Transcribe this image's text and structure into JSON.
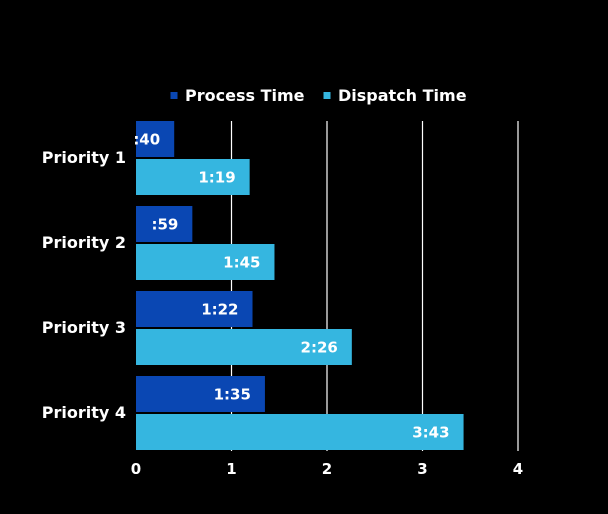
{
  "chart_data": {
    "type": "bar",
    "orientation": "horizontal",
    "categories": [
      "Priority 1",
      "Priority 2",
      "Priority 3",
      "Priority 4"
    ],
    "series": [
      {
        "name": "Process Time",
        "color": "#0a47b3",
        "values": [
          0.4,
          0.59,
          1.22,
          1.35
        ],
        "labels": [
          ":40",
          ":59",
          "1:22",
          "1:35"
        ]
      },
      {
        "name": "Dispatch Time",
        "color": "#35b6e0",
        "values": [
          1.19,
          1.45,
          2.26,
          3.43
        ],
        "labels": [
          "1:19",
          "1:45",
          "2:26",
          "3:43"
        ]
      }
    ],
    "xlim": [
      0,
      4
    ],
    "xticks": [
      "0",
      "1",
      "2",
      "3",
      "4"
    ],
    "xlabel": "",
    "ylabel": "",
    "grid": true,
    "legend_position": "top-center",
    "title": ""
  },
  "colors": {
    "background": "#000000",
    "text": "#ffffff",
    "grid": "#ffffff",
    "legend_marker_process": "#0a47b3",
    "legend_marker_dispatch": "#35b6e0"
  }
}
